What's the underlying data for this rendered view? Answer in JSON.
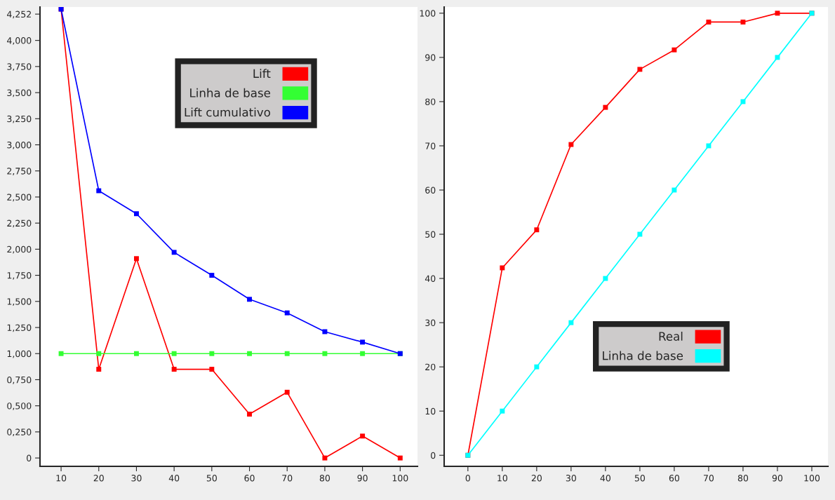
{
  "chart_data": [
    {
      "type": "line",
      "x": [
        10,
        20,
        30,
        40,
        50,
        60,
        70,
        80,
        90,
        100
      ],
      "series": [
        {
          "name": "Lift",
          "color": "#ff0000",
          "values": [
            4.3,
            0.85,
            1.91,
            0.85,
            0.85,
            0.42,
            0.63,
            0,
            0.21,
            0
          ]
        },
        {
          "name": "Linha de base",
          "color": "#33ff33",
          "values": [
            1,
            1,
            1,
            1,
            1,
            1,
            1,
            1,
            1,
            1
          ]
        },
        {
          "name": "Lift cumulativo",
          "color": "#0000ff",
          "values": [
            4.3,
            2.56,
            2.34,
            1.97,
            1.75,
            1.52,
            1.39,
            1.21,
            1.11,
            1
          ]
        }
      ],
      "xlim": [
        4.4,
        104.6
      ],
      "xticks": [
        10,
        20,
        30,
        40,
        50,
        60,
        70,
        80,
        90,
        100
      ],
      "ylim": [
        -0.08,
        4.32
      ],
      "yticks": [
        {
          "value": 0,
          "label": "0"
        },
        {
          "value": 0.25,
          "label": "0,250"
        },
        {
          "value": 0.5,
          "label": "0,500"
        },
        {
          "value": 0.75,
          "label": "0,750"
        },
        {
          "value": 1,
          "label": "1,000"
        },
        {
          "value": 1.25,
          "label": "1,250"
        },
        {
          "value": 1.5,
          "label": "1,500"
        },
        {
          "value": 1.75,
          "label": "1,750"
        },
        {
          "value": 2,
          "label": "2,000"
        },
        {
          "value": 2.25,
          "label": "2,250"
        },
        {
          "value": 2.5,
          "label": "2,500"
        },
        {
          "value": 2.75,
          "label": "2,750"
        },
        {
          "value": 3,
          "label": "3,000"
        },
        {
          "value": 3.25,
          "label": "3,250"
        },
        {
          "value": 3.5,
          "label": "3,500"
        },
        {
          "value": 3.75,
          "label": "3,750"
        },
        {
          "value": 4,
          "label": "4,000"
        },
        {
          "value": 4.252,
          "label": "4,252"
        }
      ],
      "marker": "square",
      "grid": false,
      "legend": "top right"
    },
    {
      "type": "line",
      "x": [
        0,
        10,
        20,
        30,
        40,
        50,
        60,
        70,
        80,
        90,
        100
      ],
      "series": [
        {
          "name": "Real",
          "color": "#ff0000",
          "values": [
            0,
            42.4,
            51,
            70.3,
            78.7,
            87.3,
            91.7,
            98,
            98,
            100,
            100
          ]
        },
        {
          "name": "Linha de base",
          "color": "#00ffff",
          "values": [
            0,
            10,
            20,
            30,
            40,
            50,
            60,
            70,
            80,
            90,
            100
          ]
        }
      ],
      "xlim": [
        -6.9,
        104.7
      ],
      "xticks": [
        0,
        10,
        20,
        30,
        40,
        50,
        60,
        70,
        80,
        90,
        100
      ],
      "ylim": [
        -2.5,
        101.4
      ],
      "yticks": [
        0,
        10,
        20,
        30,
        40,
        50,
        60,
        70,
        80,
        90,
        100
      ],
      "marker": "square",
      "grid": false,
      "legend": "lower right"
    }
  ]
}
